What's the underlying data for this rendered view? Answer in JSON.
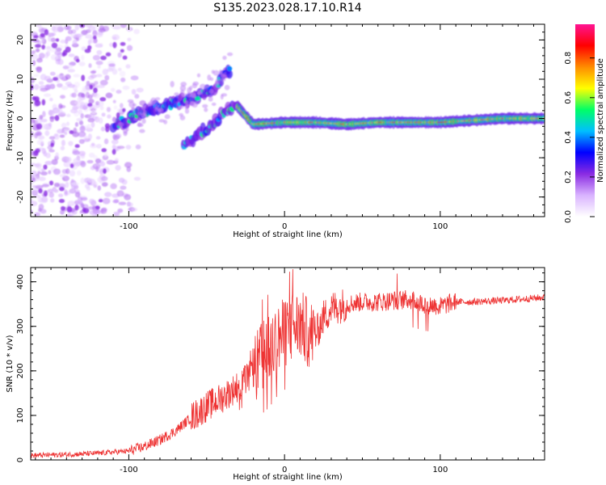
{
  "title": "S135.2023.028.17.10.R14",
  "chart_data": [
    {
      "type": "heatmap",
      "name": "spectrogram",
      "xlabel": "Height of straight line (km)",
      "ylabel": "Frequency (Hz)",
      "xlim": [
        -163,
        167
      ],
      "ylim": [
        -25,
        24
      ],
      "x_ticks": [
        -100,
        0,
        100
      ],
      "y_ticks": [
        -20,
        -10,
        0,
        10,
        20
      ],
      "colorbar": {
        "label": "Normalized spectral amplitude",
        "range": [
          0,
          0.97
        ],
        "ticks": [
          0.0,
          0.2,
          0.4,
          0.6,
          0.8
        ],
        "tick_labels": [
          "0.0",
          "0.2",
          "0.4",
          "0.6",
          "0.8"
        ],
        "colors": [
          "#ffffff",
          "#d9b3ff",
          "#8a2be2",
          "#0000ff",
          "#00bfff",
          "#00ff66",
          "#ffff00",
          "#ff8c00",
          "#ff0000",
          "#ff1493"
        ]
      },
      "features": [
        {
          "name": "noise-cloud",
          "x_range": [
            -163,
            -100
          ],
          "freq_range": [
            -25,
            24
          ],
          "amplitude": 0.1
        },
        {
          "name": "upper-branch",
          "points": [
            [
              -110,
              -2
            ],
            [
              -95,
              1
            ],
            [
              -80,
              3
            ],
            [
              -60,
              5
            ],
            [
              -45,
              8
            ],
            [
              -35,
              12
            ]
          ],
          "amplitude": 0.35
        },
        {
          "name": "lower-branch",
          "points": [
            [
              -65,
              -7
            ],
            [
              -55,
              -4
            ],
            [
              -45,
              -1
            ],
            [
              -38,
              2
            ],
            [
              -30,
              3
            ]
          ],
          "amplitude": 0.4
        },
        {
          "name": "main-tone",
          "points": [
            [
              -30,
              3
            ],
            [
              -20,
              -1.5
            ],
            [
              0,
              -1
            ],
            [
              20,
              -1
            ],
            [
              40,
              -1.5
            ],
            [
              60,
              -1
            ],
            [
              80,
              -1
            ],
            [
              100,
              -1
            ],
            [
              120,
              -0.5
            ],
            [
              140,
              0
            ],
            [
              167,
              0
            ]
          ],
          "amplitude": 0.75
        }
      ]
    },
    {
      "type": "line",
      "name": "snr",
      "xlabel": "Height of straight line (km)",
      "ylabel": "SNR (10 * v/v)",
      "xlim": [
        -163,
        167
      ],
      "ylim": [
        0,
        432
      ],
      "x_ticks": [
        -100,
        0,
        100
      ],
      "y_ticks": [
        0,
        100,
        200,
        300,
        400
      ],
      "color": "#ee3333",
      "envelope": {
        "x": [
          -163,
          -140,
          -120,
          -100,
          -90,
          -80,
          -70,
          -60,
          -50,
          -40,
          -30,
          -20,
          -15,
          -10,
          -5,
          0,
          5,
          10,
          15,
          20,
          25,
          30,
          40,
          50,
          60,
          70,
          80,
          90,
          100,
          110,
          120,
          140,
          167
        ],
        "y": [
          10,
          12,
          15,
          20,
          30,
          45,
          65,
          95,
          120,
          140,
          165,
          195,
          230,
          245,
          270,
          285,
          300,
          305,
          285,
          280,
          320,
          340,
          350,
          355,
          355,
          358,
          360,
          350,
          345,
          355,
          355,
          358,
          365
        ]
      }
    }
  ]
}
